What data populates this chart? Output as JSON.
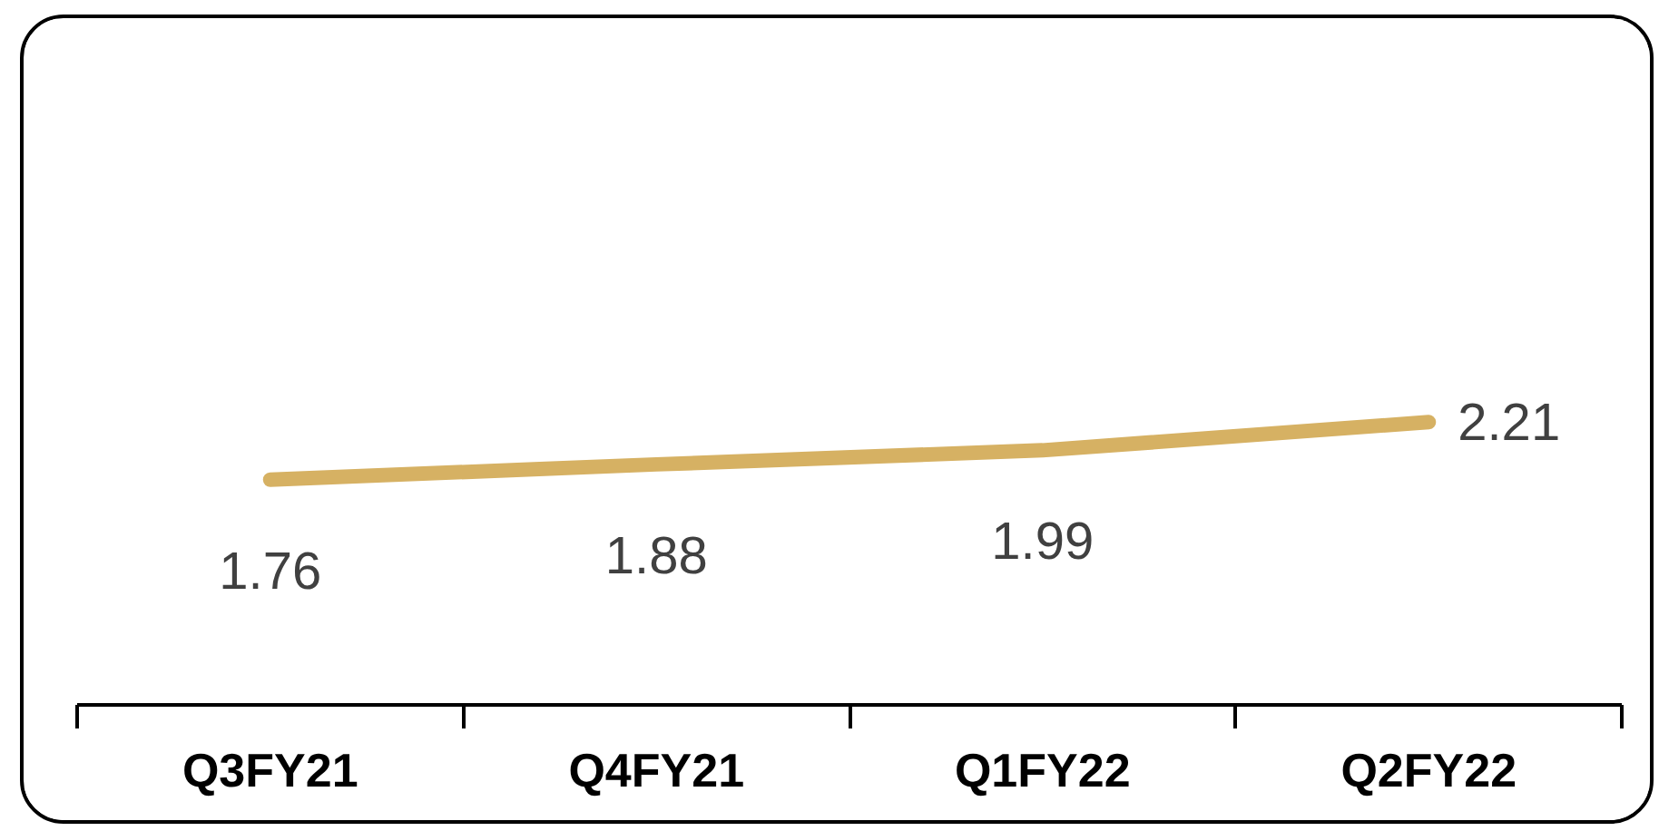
{
  "chart_data": {
    "type": "line",
    "categories": [
      "Q3FY21",
      "Q4FY21",
      "Q1FY22",
      "Q2FY22"
    ],
    "series": [
      {
        "color": "#d6b163",
        "values": [
          1.76,
          1.88,
          1.99,
          2.21
        ]
      }
    ],
    "data_labels": true,
    "tick_labels": "x",
    "line_style": "solid"
  }
}
